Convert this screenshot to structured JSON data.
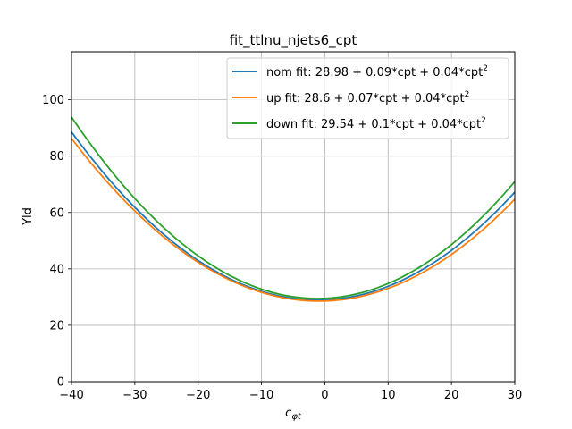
{
  "chart_data": {
    "type": "line",
    "title": "fit_ttlnu_njets6_cpt",
    "xlabel_base": "c",
    "xlabel_sub": "φt",
    "ylabel": "Yld",
    "xlim": [
      -40,
      30
    ],
    "ylim": [
      0,
      117
    ],
    "x_ticks": [
      -40,
      -30,
      -20,
      -10,
      0,
      10,
      20,
      30
    ],
    "y_ticks": [
      0,
      20,
      40,
      60,
      80,
      100
    ],
    "x_tick_labels": [
      "−40",
      "−30",
      "−20",
      "−10",
      "0",
      "10",
      "20",
      "30"
    ],
    "y_tick_labels": [
      "0",
      "20",
      "40",
      "60",
      "80",
      "100"
    ],
    "grid": true,
    "legend_position": "top-right",
    "series": [
      {
        "name": "nom fit: 28.98 + 0.09*cpt + 0.04*cpt",
        "name_sup": "2",
        "color": "#1f77b4",
        "coefficients": {
          "c0": 28.98,
          "c1": 0.09,
          "c2": 0.0395
        }
      },
      {
        "name": "up fit: 28.6 + 0.07*cpt + 0.04*cpt",
        "name_sup": "2",
        "color": "#ff7f0e",
        "coefficients": {
          "c0": 28.6,
          "c1": 0.07,
          "c2": 0.0378
        }
      },
      {
        "name": "down fit: 29.54 + 0.1*cpt + 0.04*cpt",
        "name_sup": "2",
        "color": "#2ca02c",
        "coefficients": {
          "c0": 29.54,
          "c1": 0.1,
          "c2": 0.0427
        }
      }
    ]
  }
}
